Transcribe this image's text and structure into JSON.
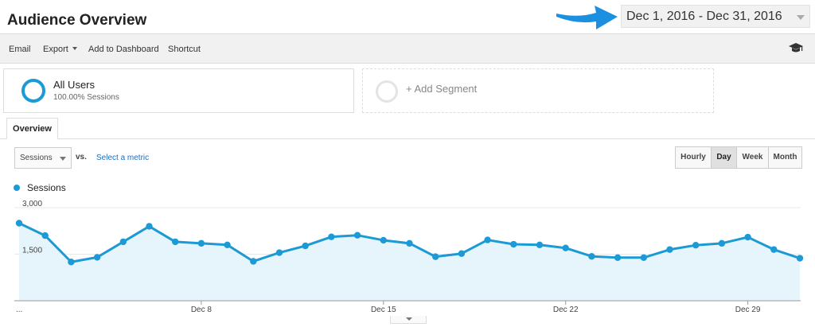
{
  "header": {
    "title": "Audience Overview",
    "date_range": "Dec 1, 2016 - Dec 31, 2016"
  },
  "toolbar": {
    "email": "Email",
    "export": "Export",
    "add_to_dashboard": "Add to Dashboard",
    "shortcut": "Shortcut"
  },
  "segments": {
    "primary": {
      "name": "All Users",
      "sub": "100.00% Sessions"
    },
    "add_label": "+ Add Segment"
  },
  "tabs": {
    "overview": "Overview"
  },
  "controls": {
    "metric": "Sessions",
    "vs": "vs.",
    "select_metric": "Select a metric",
    "granularity": [
      "Hourly",
      "Day",
      "Week",
      "Month"
    ],
    "active_granularity": "Day"
  },
  "colors": {
    "series": "#1c9ad6",
    "fill": "#e6f4fb",
    "arrow": "#1b8fe0"
  },
  "icons": {
    "graduation": "graduation-cap-icon"
  },
  "chart_data": {
    "type": "area",
    "x_labels": [
      "...",
      "Dec 8",
      "Dec 15",
      "Dec 22",
      "Dec 29"
    ],
    "x_label_days": [
      1,
      8,
      15,
      22,
      29
    ],
    "y_ticks": [
      "3,000",
      "1,500"
    ],
    "y_tick_values": [
      3000,
      1500
    ],
    "ylim": [
      0,
      3000
    ],
    "legend": "top-left",
    "series": [
      {
        "name": "Sessions",
        "days": [
          1,
          2,
          3,
          4,
          5,
          6,
          7,
          8,
          9,
          10,
          11,
          12,
          13,
          14,
          15,
          16,
          17,
          18,
          19,
          20,
          21,
          22,
          23,
          24,
          25,
          26,
          27,
          28,
          29,
          30,
          31
        ],
        "values": [
          2500,
          2100,
          1250,
          1400,
          1900,
          2400,
          1900,
          1850,
          1800,
          1270,
          1550,
          1770,
          2060,
          2110,
          1950,
          1850,
          1420,
          1520,
          1960,
          1820,
          1800,
          1700,
          1430,
          1390,
          1390,
          1650,
          1790,
          1850,
          2050,
          1650,
          1370
        ]
      }
    ]
  }
}
